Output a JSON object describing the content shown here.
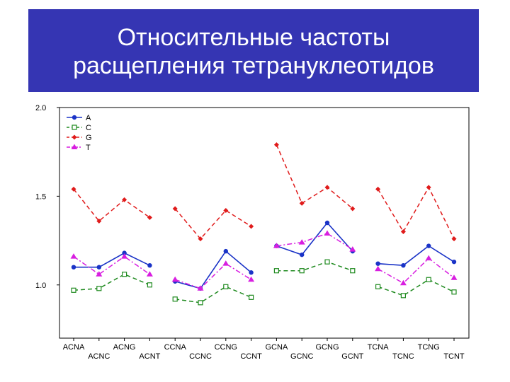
{
  "title": {
    "line1": "Относительные частоты",
    "line2": "расщепления тетрануклеотидов"
  },
  "chart_data": {
    "type": "line",
    "ylim": [
      0.7,
      2.0
    ],
    "y_ticks": [
      "2.0",
      "1.5",
      "1.0"
    ],
    "y_tick_values": [
      2.0,
      1.5,
      1.0
    ],
    "categories": [
      "ACNA",
      "ACNC",
      "ACNG",
      "ACNT",
      "CCNA",
      "CCNC",
      "CCNG",
      "CCNT",
      "GCNA",
      "GCNC",
      "GCNG",
      "GCNT",
      "TCNA",
      "TCNC",
      "TCNG",
      "TCNT"
    ],
    "groups": [
      [
        0,
        3
      ],
      [
        4,
        7
      ],
      [
        8,
        11
      ],
      [
        12,
        15
      ]
    ],
    "legend_position": "top-left",
    "grid": false,
    "series": [
      {
        "name": "A",
        "color": "#1a33c7",
        "dash": "solid",
        "marker": "circle",
        "values": [
          1.1,
          1.1,
          1.18,
          1.11,
          1.02,
          0.98,
          1.19,
          1.07,
          1.22,
          1.17,
          1.35,
          1.19,
          1.12,
          1.11,
          1.22,
          1.13
        ]
      },
      {
        "name": "C",
        "color": "#1f8a1f",
        "dash": "dashed",
        "marker": "square",
        "values": [
          0.97,
          0.98,
          1.06,
          1.0,
          0.92,
          0.9,
          0.99,
          0.93,
          1.08,
          1.08,
          1.13,
          1.08,
          0.99,
          0.94,
          1.03,
          0.96
        ]
      },
      {
        "name": "G",
        "color": "#e01b1b",
        "dash": "dashed",
        "marker": "diamond",
        "values": [
          1.54,
          1.36,
          1.48,
          1.38,
          1.43,
          1.26,
          1.42,
          1.33,
          1.79,
          1.46,
          1.55,
          1.43,
          1.54,
          1.3,
          1.55,
          1.26
        ]
      },
      {
        "name": "T",
        "color": "#d81ee0",
        "dash": "dashdot",
        "marker": "triangle",
        "values": [
          1.16,
          1.06,
          1.16,
          1.06,
          1.03,
          0.98,
          1.12,
          1.03,
          1.22,
          1.24,
          1.29,
          1.2,
          1.09,
          1.01,
          1.15,
          1.04
        ]
      }
    ]
  }
}
